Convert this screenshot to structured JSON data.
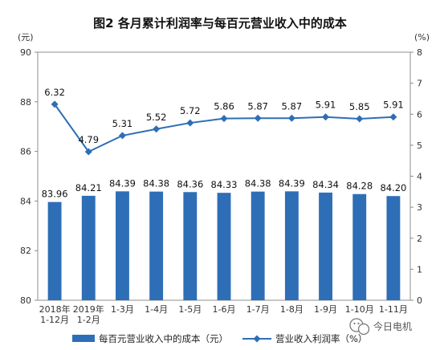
{
  "chart_data": {
    "type": "bar",
    "title": "图2  各月累计利润率与每百元营业收入中的成本",
    "categories": [
      [
        "2018年",
        "1-12月"
      ],
      [
        "2019年",
        "1-2月"
      ],
      [
        "1-3月"
      ],
      [
        "1-4月"
      ],
      [
        "1-5月"
      ],
      [
        "1-6月"
      ],
      [
        "1-7月"
      ],
      [
        "1-8月"
      ],
      [
        "1-9月"
      ],
      [
        "1-10月"
      ],
      [
        "1-11月"
      ]
    ],
    "y_left": {
      "unit": "(元)",
      "min": 80,
      "max": 90,
      "ticks": [
        80,
        82,
        84,
        86,
        88,
        90
      ]
    },
    "y_right": {
      "unit": "(%)",
      "min": 0,
      "max": 8,
      "ticks": [
        0,
        1,
        2,
        3,
        4,
        5,
        6,
        7,
        8
      ]
    },
    "series": [
      {
        "name": "每百元营业收入中的成本（元）",
        "type": "bar",
        "axis": "left",
        "color": "#2e6eb6",
        "values": [
          83.96,
          84.21,
          84.39,
          84.38,
          84.36,
          84.33,
          84.38,
          84.39,
          84.34,
          84.28,
          84.2
        ],
        "labels": [
          "83.96",
          "84.21",
          "84.39",
          "84.38",
          "84.36",
          "84.33",
          "84.38",
          "84.39",
          "84.34",
          "84.28",
          "84.20"
        ]
      },
      {
        "name": "营业收入利润率（%）",
        "type": "line",
        "axis": "right",
        "color": "#2e6eb6",
        "values": [
          6.32,
          4.79,
          5.31,
          5.52,
          5.72,
          5.86,
          5.87,
          5.87,
          5.91,
          5.85,
          5.91
        ],
        "labels": [
          "6.32",
          "4.79",
          "5.31",
          "5.52",
          "5.72",
          "5.86",
          "5.87",
          "5.87",
          "5.91",
          "5.85",
          "5.91"
        ]
      }
    ],
    "grid": false,
    "legend": "bottom"
  },
  "watermark": {
    "icon": "wechat-icon",
    "text": "今日电机"
  }
}
